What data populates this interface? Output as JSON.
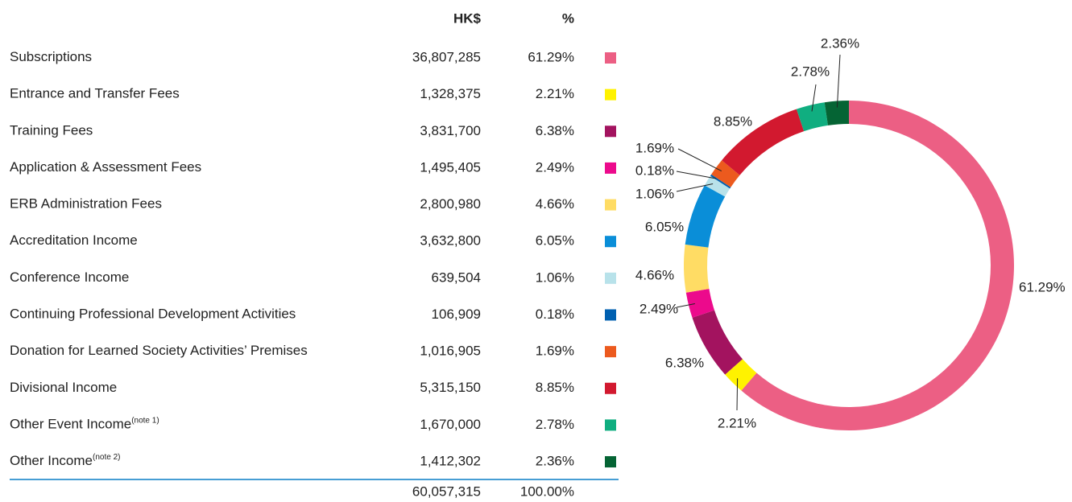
{
  "table": {
    "headers": [
      "HK$",
      "%"
    ],
    "amounts": [
      "36,807,285",
      "1,328,375",
      "3,831,700",
      "1,495,405",
      "2,800,980",
      "3,632,800",
      "639,504",
      "106,909",
      "1,016,905",
      "5,315,150",
      "1,670,000",
      "1,412,302"
    ],
    "notes": {
      "10": "(note 1)",
      "11": "(note 2)"
    },
    "total": {
      "amount": "60,057,315",
      "percent": "100.00%"
    }
  },
  "chart_data": {
    "type": "pie",
    "donut": true,
    "categories": [
      "Subscriptions",
      "Entrance and Transfer Fees",
      "Training Fees",
      "Application & Assessment Fees",
      "ERB Administration Fees",
      "Accreditation Income",
      "Conference Income",
      "Continuing Professional Development Activities",
      "Donation for Learned Society Activities’ Premises",
      "Divisional Income",
      "Other Event Income",
      "Other Income"
    ],
    "values": [
      61.29,
      2.21,
      6.38,
      2.49,
      4.66,
      6.05,
      1.06,
      0.18,
      1.69,
      8.85,
      2.78,
      2.36
    ],
    "value_labels": [
      "61.29%",
      "2.21%",
      "6.38%",
      "2.49%",
      "4.66%",
      "6.05%",
      "1.06%",
      "0.18%",
      "1.69%",
      "8.85%",
      "2.78%",
      "2.36%"
    ],
    "colors": [
      "#ec5f84",
      "#fff200",
      "#a3135f",
      "#ec0a8c",
      "#ffdc64",
      "#0a8ed8",
      "#b8e2ea",
      "#0060b0",
      "#ec5a1e",
      "#d2192f",
      "#10ae80",
      "#056434"
    ]
  }
}
